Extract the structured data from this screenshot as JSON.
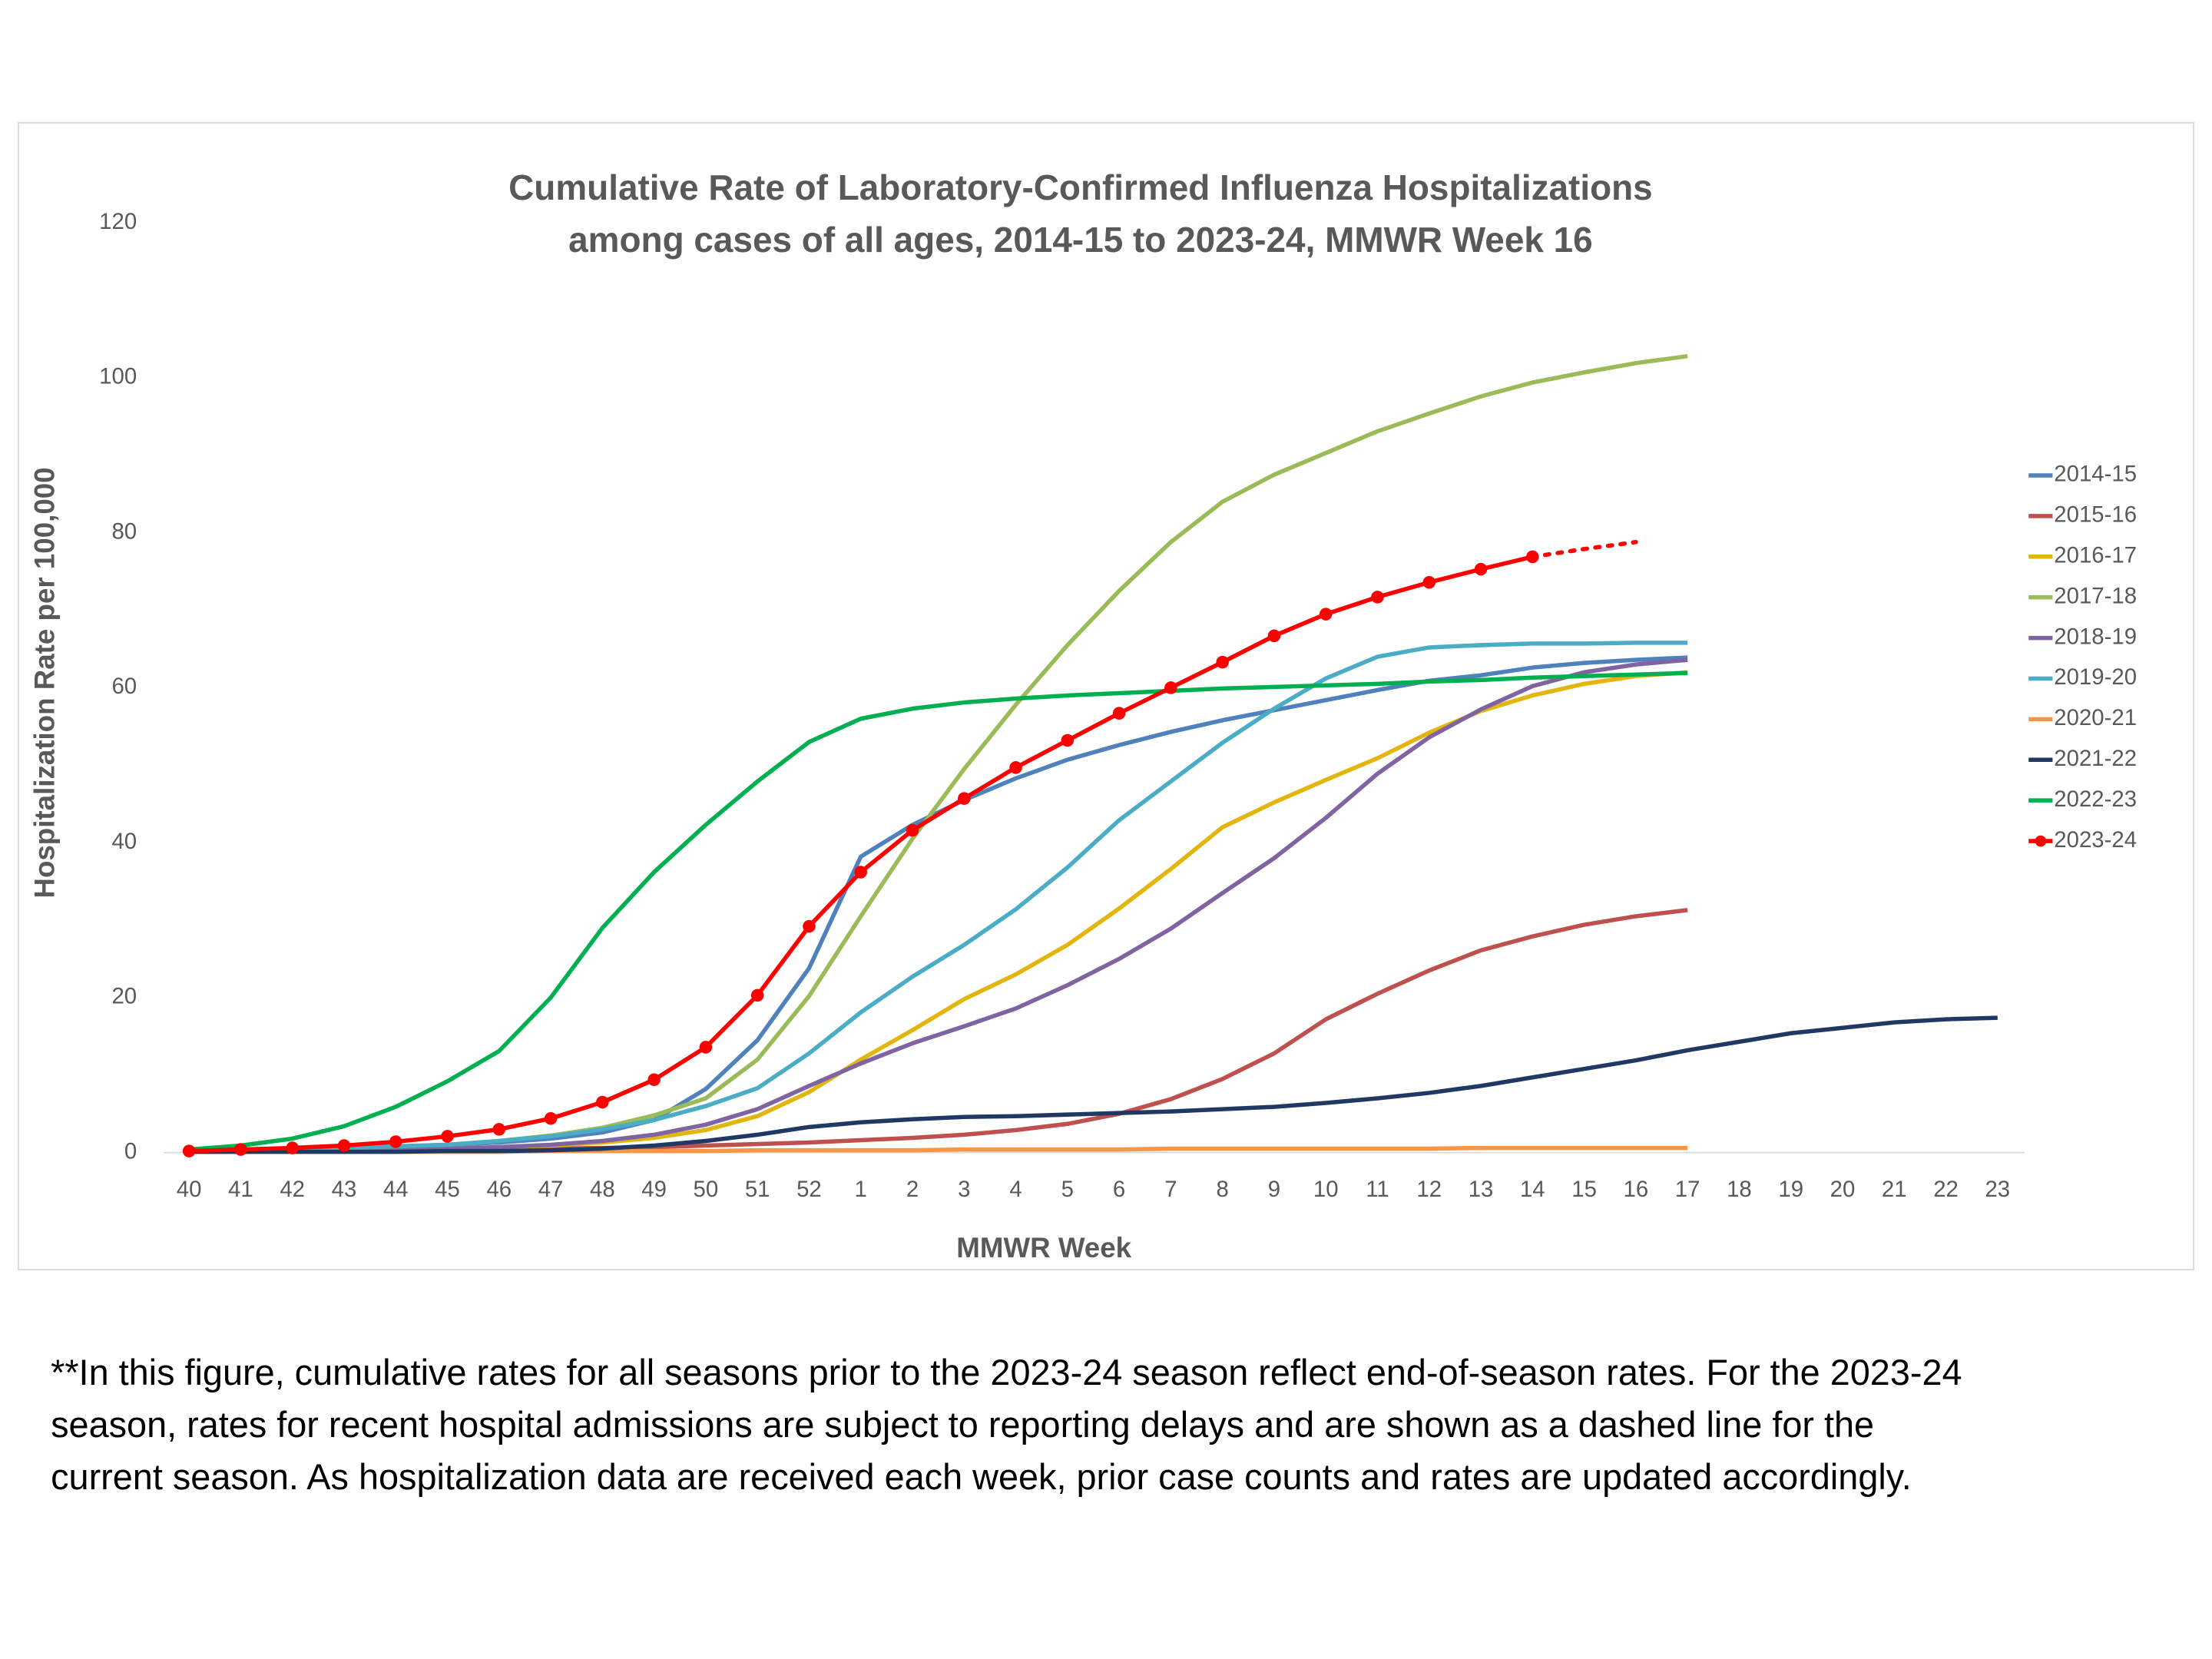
{
  "chart_data": {
    "type": "line",
    "title": [
      "Cumulative Rate of Laboratory-Confirmed Influenza Hospitalizations",
      "among cases of all ages, 2014-15 to 2023-24, MMWR Week 16"
    ],
    "x_label": "MMWR Week",
    "y_label": "Hospitalization Rate per 100,000",
    "x": [
      "40",
      "41",
      "42",
      "43",
      "44",
      "45",
      "46",
      "47",
      "48",
      "49",
      "50",
      "51",
      "52",
      "1",
      "2",
      "3",
      "4",
      "5",
      "6",
      "7",
      "8",
      "9",
      "10",
      "11",
      "12",
      "13",
      "14",
      "15",
      "16",
      "17",
      "18",
      "19",
      "20",
      "21",
      "22",
      "23"
    ],
    "ylim": [
      0,
      120
    ],
    "yticks": [
      0,
      20,
      40,
      60,
      80,
      100,
      120
    ],
    "grid": false,
    "legend": "right",
    "series": [
      {
        "name": "2014-15",
        "color": "#4f81bd",
        "values": [
          0.3,
          0.4,
          0.5,
          0.6,
          0.8,
          1.0,
          1.3,
          1.8,
          2.6,
          4.2,
          8.2,
          14.5,
          23.8,
          38.2,
          42.3,
          45.5,
          48.3,
          50.7,
          52.6,
          54.3,
          55.8,
          57.1,
          58.4,
          59.7,
          60.9,
          61.6,
          62.6,
          63.2,
          63.6,
          63.9,
          null,
          null,
          null,
          null,
          null,
          null
        ]
      },
      {
        "name": "2015-16",
        "color": "#c0504d",
        "values": [
          0.1,
          0.1,
          0.2,
          0.2,
          0.3,
          0.3,
          0.4,
          0.5,
          0.6,
          0.7,
          0.9,
          1.1,
          1.3,
          1.6,
          1.9,
          2.3,
          2.9,
          3.7,
          5.0,
          6.9,
          9.5,
          12.8,
          17.2,
          20.5,
          23.5,
          26.1,
          27.9,
          29.4,
          30.5,
          31.3,
          null,
          null,
          null,
          null,
          null,
          null
        ]
      },
      {
        "name": "2016-17",
        "color": "#e2b60e",
        "values": [
          0.1,
          0.1,
          0.2,
          0.3,
          0.4,
          0.5,
          0.7,
          0.9,
          1.3,
          1.9,
          2.9,
          4.7,
          7.8,
          12.0,
          15.8,
          19.8,
          23.0,
          26.8,
          31.5,
          36.6,
          42.0,
          45.2,
          48.1,
          50.9,
          54.2,
          57.0,
          59.0,
          60.5,
          61.5,
          62.0,
          null,
          null,
          null,
          null,
          null,
          null
        ]
      },
      {
        "name": "2017-18",
        "color": "#9bbb59",
        "values": [
          0.2,
          0.3,
          0.4,
          0.5,
          0.7,
          1.0,
          1.5,
          2.2,
          3.2,
          4.8,
          7.0,
          12.0,
          20.2,
          30.5,
          40.5,
          49.5,
          57.8,
          65.5,
          72.5,
          78.8,
          84.0,
          87.5,
          90.3,
          93.1,
          95.4,
          97.6,
          99.4,
          100.7,
          101.9,
          102.8,
          null,
          null,
          null,
          null,
          null,
          null
        ]
      },
      {
        "name": "2018-19",
        "color": "#8064a2",
        "values": [
          0.1,
          0.1,
          0.2,
          0.3,
          0.4,
          0.5,
          0.7,
          1.0,
          1.5,
          2.3,
          3.6,
          5.6,
          8.6,
          11.5,
          14.1,
          16.3,
          18.6,
          21.6,
          25.0,
          28.9,
          33.5,
          38.0,
          43.2,
          48.9,
          53.6,
          57.2,
          60.2,
          62.0,
          63.0,
          63.6,
          null,
          null,
          null,
          null,
          null,
          null
        ]
      },
      {
        "name": "2019-20",
        "color": "#4bacc6",
        "values": [
          0.3,
          0.4,
          0.5,
          0.6,
          0.8,
          1.0,
          1.5,
          2.1,
          3.0,
          4.2,
          6.0,
          8.3,
          12.8,
          18.1,
          22.7,
          26.8,
          31.4,
          36.8,
          42.9,
          47.9,
          52.9,
          57.3,
          61.2,
          64.0,
          65.2,
          65.5,
          65.7,
          65.7,
          65.8,
          65.8,
          null,
          null,
          null,
          null,
          null,
          null
        ]
      },
      {
        "name": "2020-21",
        "color": "#f79646",
        "values": [
          0.1,
          0.1,
          0.1,
          0.1,
          0.1,
          0.1,
          0.1,
          0.2,
          0.2,
          0.2,
          0.2,
          0.3,
          0.3,
          0.3,
          0.3,
          0.4,
          0.4,
          0.4,
          0.4,
          0.5,
          0.5,
          0.5,
          0.5,
          0.5,
          0.5,
          0.6,
          0.6,
          0.6,
          0.6,
          0.6,
          null,
          null,
          null,
          null,
          null,
          null
        ]
      },
      {
        "name": "2021-22",
        "color": "#203864",
        "values": [
          0.1,
          0.1,
          0.1,
          0.1,
          0.1,
          0.2,
          0.2,
          0.3,
          0.5,
          0.9,
          1.5,
          2.3,
          3.3,
          3.9,
          4.3,
          4.6,
          4.7,
          4.9,
          5.1,
          5.3,
          5.6,
          5.9,
          6.4,
          7.0,
          7.7,
          8.6,
          9.7,
          10.8,
          11.9,
          13.2,
          14.3,
          15.4,
          16.1,
          16.8,
          17.2,
          17.4
        ]
      },
      {
        "name": "2022-23",
        "color": "#00b050",
        "values": [
          0.4,
          0.9,
          1.8,
          3.4,
          5.9,
          9.2,
          13.1,
          20.0,
          29.0,
          36.2,
          42.3,
          47.9,
          53.0,
          56.0,
          57.3,
          58.1,
          58.6,
          59.0,
          59.3,
          59.6,
          59.9,
          60.1,
          60.3,
          60.5,
          60.8,
          61.0,
          61.3,
          61.5,
          61.7,
          61.9,
          null,
          null,
          null,
          null,
          null,
          null
        ]
      },
      {
        "name": "2023-24",
        "color": "#ff0000",
        "marker": true,
        "values": [
          0.2,
          0.4,
          0.6,
          0.9,
          1.4,
          2.1,
          3.0,
          4.4,
          6.5,
          9.4,
          13.6,
          20.3,
          29.2,
          36.2,
          41.6,
          45.7,
          49.7,
          53.2,
          56.7,
          60.0,
          63.3,
          66.7,
          69.5,
          71.7,
          73.6,
          75.3,
          76.9,
          null,
          null,
          null,
          null,
          null,
          null,
          null,
          null,
          null
        ],
        "provisional_values": [
          null,
          null,
          null,
          null,
          null,
          null,
          null,
          null,
          null,
          null,
          null,
          null,
          null,
          null,
          null,
          null,
          null,
          null,
          null,
          null,
          null,
          null,
          null,
          null,
          null,
          null,
          76.9,
          77.9,
          78.8,
          null,
          null,
          null,
          null,
          null,
          null,
          null
        ]
      }
    ],
    "footnote": [
      "**In this figure, cumulative rates for all seasons prior to the 2023-24 season reflect end-of-season rates. For the 2023-24",
      "season, rates for recent hospital admissions are subject to reporting delays and are shown as a dashed line for the",
      "current season. As hospitalization data are received each week, prior case counts and rates are updated accordingly."
    ]
  }
}
